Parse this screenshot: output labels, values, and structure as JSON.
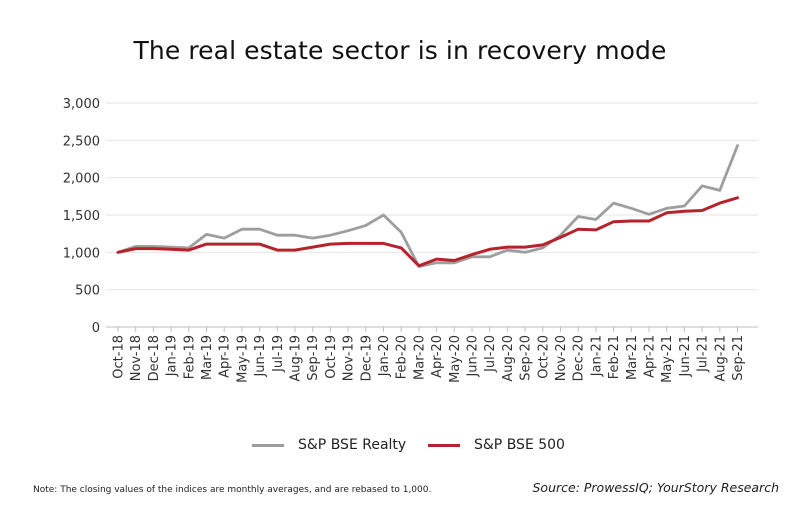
{
  "title": "The real estate sector is in recovery mode",
  "note": "Note: The closing values of the indices are monthly averages, and are rebased to 1,000.",
  "source": "Source: ProwessIQ; YourStory Research",
  "colors": {
    "realty": "#9e9e9e",
    "bse500": "#b5242c",
    "grid": "#e6e6e6",
    "axis": "#bfbfbf"
  },
  "chart_data": {
    "type": "line",
    "title": "The real estate sector is in recovery mode",
    "xlabel": "",
    "ylabel": "",
    "ylim": [
      0,
      3000
    ],
    "yticks": [
      0,
      500,
      1000,
      1500,
      2000,
      2500,
      3000
    ],
    "ytick_labels": [
      "0",
      "500",
      "1,000",
      "1,500",
      "2,000",
      "2,500",
      "3,000"
    ],
    "grid": true,
    "legend_position": "bottom",
    "categories": [
      "Oct-18",
      "Nov-18",
      "Dec-18",
      "Jan-19",
      "Feb-19",
      "Mar-19",
      "Apr-19",
      "May-19",
      "Jun-19",
      "Jul-19",
      "Aug-19",
      "Sep-19",
      "Oct-19",
      "Nov-19",
      "Dec-19",
      "Jan-20",
      "Feb-20",
      "Mar-20",
      "Apr-20",
      "May-20",
      "Jun-20",
      "Jul-20",
      "Aug-20",
      "Sep-20",
      "Oct-20",
      "Nov-20",
      "Dec-20",
      "Jan-21",
      "Feb-21",
      "Mar-21",
      "Apr-21",
      "May-21",
      "Jun-21",
      "Jul-21",
      "Aug-21",
      "Sep-21"
    ],
    "series": [
      {
        "name": "S&P BSE Realty",
        "color": "#9e9e9e",
        "values": [
          1000,
          1080,
          1080,
          1070,
          1060,
          1240,
          1190,
          1310,
          1310,
          1230,
          1230,
          1190,
          1230,
          1290,
          1360,
          1500,
          1270,
          810,
          860,
          860,
          940,
          940,
          1030,
          1000,
          1060,
          1230,
          1480,
          1440,
          1660,
          1590,
          1510,
          1590,
          1620,
          1890,
          1830,
          2430
        ]
      },
      {
        "name": "S&P BSE 500",
        "color": "#b5242c",
        "values": [
          1000,
          1050,
          1050,
          1040,
          1030,
          1110,
          1110,
          1110,
          1110,
          1030,
          1030,
          1070,
          1110,
          1120,
          1120,
          1120,
          1060,
          820,
          910,
          890,
          970,
          1040,
          1070,
          1070,
          1100,
          1200,
          1310,
          1300,
          1410,
          1420,
          1420,
          1530,
          1550,
          1560,
          1660,
          1730
        ]
      }
    ]
  }
}
